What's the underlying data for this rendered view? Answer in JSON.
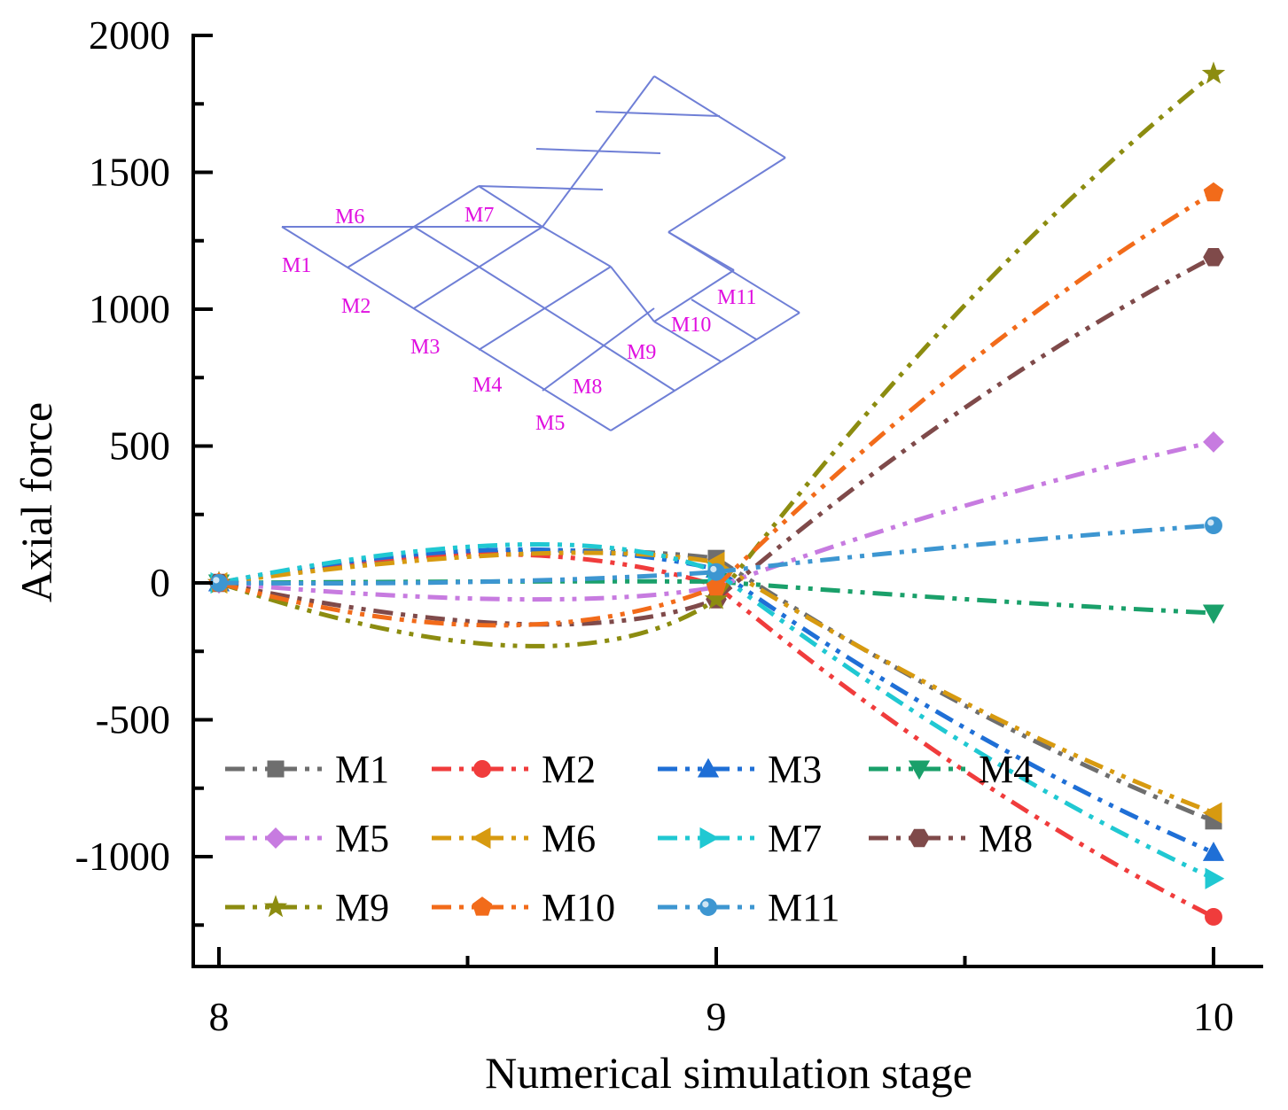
{
  "chart_data": {
    "type": "line",
    "title": "",
    "xlabel": "Numerical simulation stage",
    "ylabel": "Axial force",
    "x": [
      8,
      9,
      10
    ],
    "xlim": [
      7.99,
      10.1
    ],
    "ylim": [
      -1400,
      2000
    ],
    "xticks": [
      "8",
      "9",
      "10"
    ],
    "yticks": [
      "2000",
      "1500",
      "1000",
      "500",
      "0",
      "-500",
      "-1000"
    ],
    "ytick_values": [
      2000,
      1500,
      1000,
      500,
      0,
      -500,
      -1000
    ],
    "legend_position": "bottom-left",
    "series": [
      {
        "name": "M1",
        "color": "#6e6e6e",
        "marker": "square",
        "values": [
          0,
          90,
          -870
        ],
        "mid": [
          8.55,
          110
        ]
      },
      {
        "name": "M2",
        "color": "#f03c3c",
        "marker": "circle",
        "values": [
          0,
          -10,
          -1220
        ],
        "mid": [
          8.55,
          105
        ]
      },
      {
        "name": "M3",
        "color": "#1f6fd6",
        "marker": "triangle-up",
        "values": [
          0,
          50,
          -985
        ],
        "mid": [
          8.55,
          120
        ]
      },
      {
        "name": "M4",
        "color": "#1aa06a",
        "marker": "triangle-down",
        "values": [
          0,
          5,
          -110
        ],
        "mid": [
          8.55,
          5
        ]
      },
      {
        "name": "M5",
        "color": "#c77be0",
        "marker": "diamond",
        "values": [
          0,
          -15,
          515
        ],
        "mid": [
          8.6,
          -60
        ]
      },
      {
        "name": "M6",
        "color": "#d79a10",
        "marker": "triangle-left",
        "values": [
          0,
          75,
          -840
        ],
        "mid": [
          8.6,
          105
        ]
      },
      {
        "name": "M7",
        "color": "#20c8d2",
        "marker": "triangle-right",
        "values": [
          0,
          40,
          -1080
        ],
        "mid": [
          8.6,
          140
        ]
      },
      {
        "name": "M8",
        "color": "#7f4a4a",
        "marker": "hexagon",
        "values": [
          0,
          -60,
          1190
        ],
        "mid": [
          8.6,
          -150
        ]
      },
      {
        "name": "M9",
        "color": "#8c8c10",
        "marker": "star",
        "values": [
          0,
          -60,
          1860
        ],
        "mid": [
          8.6,
          -230
        ]
      },
      {
        "name": "M10",
        "color": "#f26b1a",
        "marker": "pentagon",
        "values": [
          0,
          -15,
          1425
        ],
        "mid": [
          8.55,
          -155
        ]
      },
      {
        "name": "M11",
        "color": "#3d96d1",
        "marker": "ball",
        "values": [
          0,
          40,
          210
        ],
        "mid": [
          8.55,
          5
        ]
      }
    ],
    "inset_labels": [
      "M1",
      "M2",
      "M3",
      "M4",
      "M5",
      "M6",
      "M7",
      "M8",
      "M9",
      "M10",
      "M11"
    ],
    "inset_line_color": "#6f7fd6",
    "inset_label_color": "#e010e0"
  }
}
